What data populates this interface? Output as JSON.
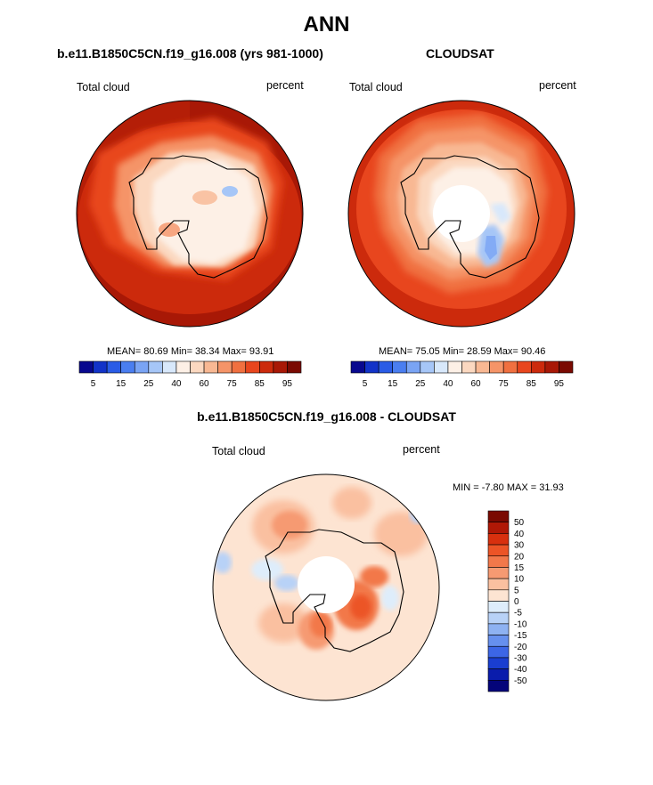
{
  "figure": {
    "title": "ANN"
  },
  "panels": {
    "model": {
      "title": "b.e11.B1850C5CN.f19_g16.008 (yrs 981-1000)",
      "left_label": "Total cloud",
      "right_label": "percent",
      "stats": "MEAN=  80.69   Min=  38.34   Max=  93.91"
    },
    "obs": {
      "title": "CLOUDSAT",
      "left_label": "Total cloud",
      "right_label": "percent",
      "stats": "MEAN=  75.05   Min=  28.59   Max=  90.46"
    },
    "diff": {
      "title": "b.e11.B1850C5CN.f19_g16.008 - CLOUDSAT",
      "left_label": "Total cloud",
      "right_label": "percent",
      "stats": "MIN =  -7.80  MAX =  31.93"
    }
  },
  "chart_data": [
    {
      "type": "heatmap",
      "name": "model",
      "projection": "south polar stereographic",
      "mean": 80.69,
      "min": 38.34,
      "max": 93.91,
      "colorbar": {
        "orientation": "horizontal",
        "labels": [
          "5",
          "15",
          "25",
          "40",
          "60",
          "75",
          "85",
          "95"
        ],
        "colors": [
          "#08088e",
          "#1233c8",
          "#2a5ce6",
          "#4a7ef0",
          "#7aa4f4",
          "#a6c6f7",
          "#d8e8fb",
          "#fdf0e6",
          "#fbd8c0",
          "#f8b893",
          "#f59468",
          "#f07040",
          "#e8461e",
          "#cc2a0c",
          "#a81806",
          "#7a0a02"
        ]
      }
    },
    {
      "type": "heatmap",
      "name": "obs",
      "projection": "south polar stereographic",
      "mean": 75.05,
      "min": 28.59,
      "max": 90.46,
      "colorbar": {
        "orientation": "horizontal",
        "labels": [
          "5",
          "15",
          "25",
          "40",
          "60",
          "75",
          "85",
          "95"
        ],
        "colors": [
          "#08088e",
          "#1233c8",
          "#2a5ce6",
          "#4a7ef0",
          "#7aa4f4",
          "#a6c6f7",
          "#d8e8fb",
          "#fdf0e6",
          "#fbd8c0",
          "#f8b893",
          "#f59468",
          "#f07040",
          "#e8461e",
          "#cc2a0c",
          "#a81806",
          "#7a0a02"
        ]
      }
    },
    {
      "type": "heatmap",
      "name": "difference",
      "projection": "south polar stereographic",
      "min": -7.8,
      "max": 31.93,
      "colorbar": {
        "orientation": "vertical",
        "labels": [
          "50",
          "40",
          "30",
          "20",
          "15",
          "10",
          "5",
          "0",
          "-5",
          "-10",
          "-15",
          "-20",
          "-30",
          "-40",
          "-50"
        ],
        "colors": [
          "#7a0a02",
          "#b01806",
          "#d8300e",
          "#ec5426",
          "#f2784a",
          "#f69a72",
          "#fac0a0",
          "#fde4d2",
          "#deedfb",
          "#b8d2f7",
          "#8eb2f2",
          "#6690ee",
          "#3c66e6",
          "#1a3ed0",
          "#0a1cac",
          "#04047a"
        ]
      }
    }
  ]
}
